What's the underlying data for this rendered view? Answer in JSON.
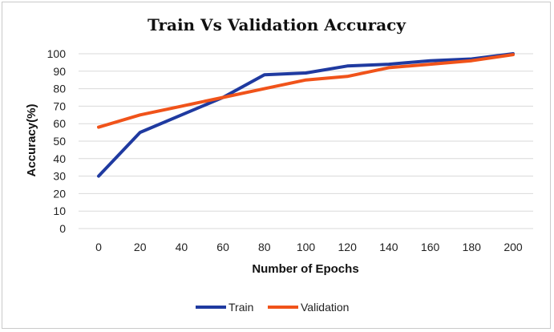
{
  "chart_data": {
    "type": "line",
    "title": "Train Vs Validation Accuracy",
    "xlabel": "Number of Epochs",
    "ylabel": "Accuracy(%)",
    "x": [
      0,
      20,
      40,
      60,
      80,
      100,
      120,
      140,
      160,
      180,
      200
    ],
    "ylim": [
      0,
      100
    ],
    "yticks": [
      0,
      10,
      20,
      30,
      40,
      50,
      60,
      70,
      80,
      90,
      100
    ],
    "grid": true,
    "legend_position": "bottom",
    "series": [
      {
        "name": "Train",
        "color": "#1f3aa0",
        "values": [
          30,
          55,
          65,
          75,
          88,
          89,
          93,
          94,
          96,
          97,
          100
        ]
      },
      {
        "name": "Validation",
        "color": "#f0531a",
        "values": [
          58,
          65,
          70,
          75,
          80,
          85,
          87,
          92,
          94,
          96,
          99.5
        ]
      }
    ]
  }
}
